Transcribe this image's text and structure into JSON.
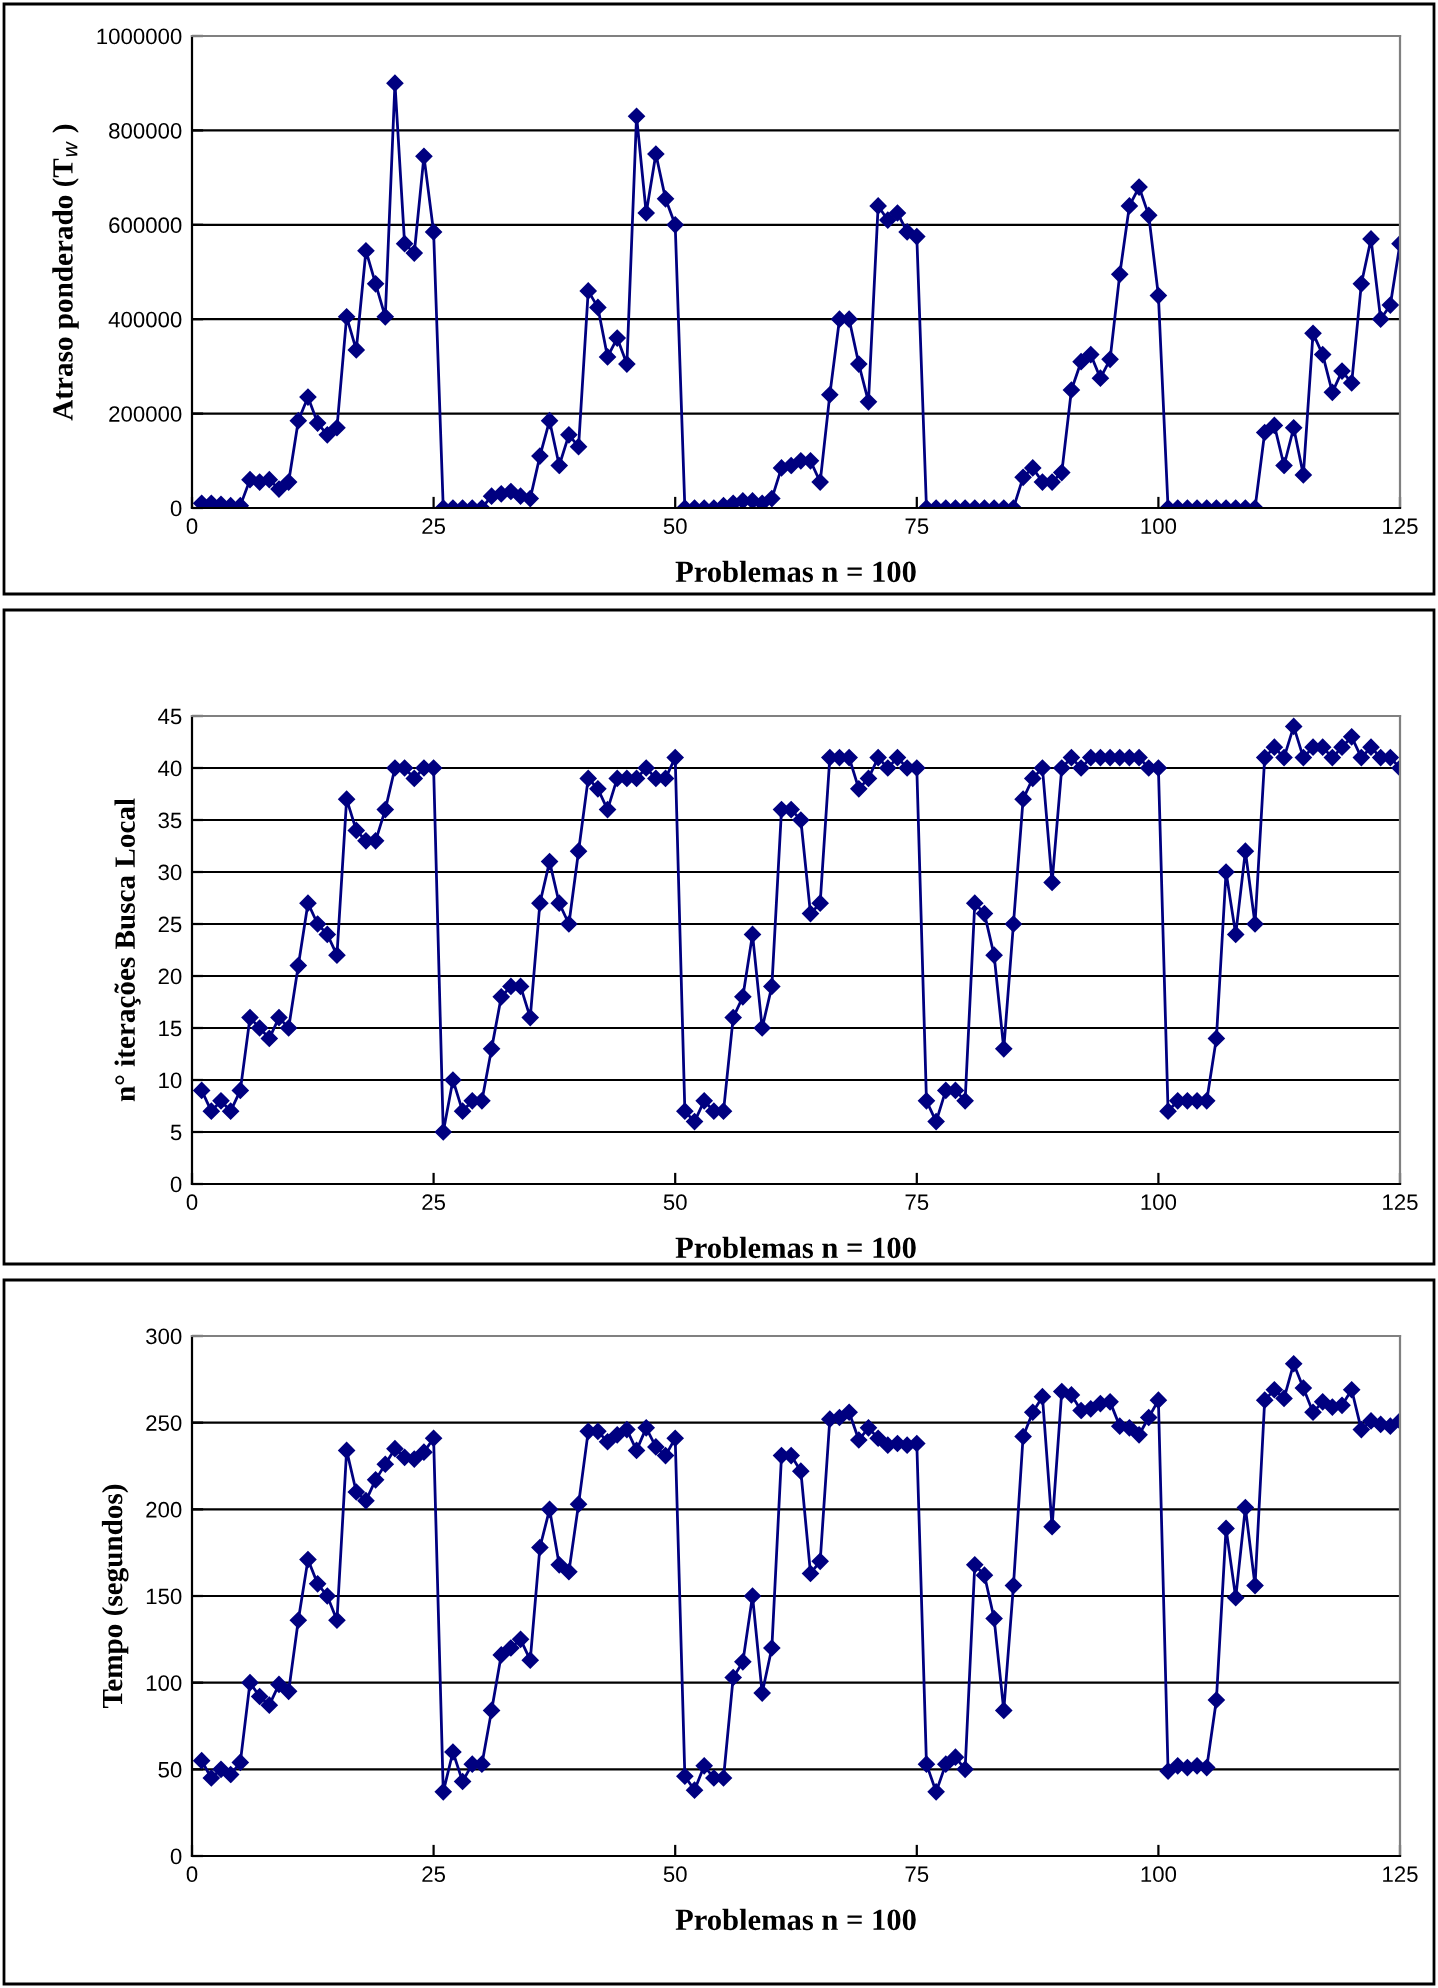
{
  "chart_data": [
    {
      "type": "line",
      "xlabel": "Problemas n = 100",
      "ylabel": "Atraso ponderado (T$_{w}$ )",
      "xlim": [
        0,
        125
      ],
      "xticks": [
        0,
        25,
        50,
        75,
        100,
        125
      ],
      "ylim": [
        0,
        1000000
      ],
      "yticks": [
        0,
        200000,
        400000,
        600000,
        800000,
        1000000
      ],
      "grid": "y",
      "marker": "diamond",
      "line_style": "solid",
      "legend": false,
      "x": [
        1,
        2,
        3,
        4,
        5,
        6,
        7,
        8,
        9,
        10,
        11,
        12,
        13,
        14,
        15,
        16,
        17,
        18,
        19,
        20,
        21,
        22,
        23,
        24,
        25,
        26,
        27,
        28,
        29,
        30,
        31,
        32,
        33,
        34,
        35,
        36,
        37,
        38,
        39,
        40,
        41,
        42,
        43,
        44,
        45,
        46,
        47,
        48,
        49,
        50,
        51,
        52,
        53,
        54,
        55,
        56,
        57,
        58,
        59,
        60,
        61,
        62,
        63,
        64,
        65,
        66,
        67,
        68,
        69,
        70,
        71,
        72,
        73,
        74,
        75,
        76,
        77,
        78,
        79,
        80,
        81,
        82,
        83,
        84,
        85,
        86,
        87,
        88,
        89,
        90,
        91,
        92,
        93,
        94,
        95,
        96,
        97,
        98,
        99,
        100,
        101,
        102,
        103,
        104,
        105,
        106,
        107,
        108,
        109,
        110,
        111,
        112,
        113,
        114,
        115,
        116,
        117,
        118,
        119,
        120,
        121,
        122,
        123,
        124,
        125
      ],
      "series": [
        {
          "color": "#000080",
          "values": [
            10000,
            10000,
            8000,
            5000,
            5000,
            60000,
            55000,
            60000,
            40000,
            55000,
            185000,
            235000,
            180000,
            155000,
            170000,
            405000,
            335000,
            545000,
            475000,
            405000,
            900000,
            560000,
            540000,
            745000,
            585000,
            0,
            0,
            0,
            0,
            0,
            25000,
            30000,
            35000,
            25000,
            20000,
            110000,
            185000,
            90000,
            155000,
            130000,
            460000,
            425000,
            320000,
            360000,
            305000,
            830000,
            625000,
            750000,
            655000,
            600000,
            0,
            0,
            0,
            0,
            5000,
            10000,
            15000,
            15000,
            10000,
            20000,
            85000,
            90000,
            100000,
            100000,
            55000,
            240000,
            400000,
            400000,
            305000,
            225000,
            640000,
            610000,
            625000,
            585000,
            575000,
            0,
            0,
            0,
            0,
            0,
            0,
            0,
            0,
            0,
            0,
            65000,
            85000,
            55000,
            55000,
            75000,
            250000,
            310000,
            325000,
            275000,
            315000,
            495000,
            640000,
            680000,
            620000,
            450000,
            0,
            0,
            0,
            0,
            0,
            0,
            0,
            0,
            0,
            0,
            160000,
            175000,
            90000,
            170000,
            70000,
            370000,
            325000,
            245000,
            290000,
            265000,
            475000,
            570000,
            400000,
            430000,
            560000
          ]
        }
      ]
    },
    {
      "type": "line",
      "xlabel": "Problemas n = 100",
      "ylabel": "n° iterações Busca Local",
      "xlim": [
        0,
        125
      ],
      "xticks": [
        0,
        25,
        50,
        75,
        100,
        125
      ],
      "ylim": [
        0,
        45
      ],
      "yticks": [
        0,
        5,
        10,
        15,
        20,
        25,
        30,
        35,
        40,
        45
      ],
      "grid": "y",
      "marker": "diamond",
      "line_style": "solid",
      "legend": false,
      "x": [
        1,
        2,
        3,
        4,
        5,
        6,
        7,
        8,
        9,
        10,
        11,
        12,
        13,
        14,
        15,
        16,
        17,
        18,
        19,
        20,
        21,
        22,
        23,
        24,
        25,
        26,
        27,
        28,
        29,
        30,
        31,
        32,
        33,
        34,
        35,
        36,
        37,
        38,
        39,
        40,
        41,
        42,
        43,
        44,
        45,
        46,
        47,
        48,
        49,
        50,
        51,
        52,
        53,
        54,
        55,
        56,
        57,
        58,
        59,
        60,
        61,
        62,
        63,
        64,
        65,
        66,
        67,
        68,
        69,
        70,
        71,
        72,
        73,
        74,
        75,
        76,
        77,
        78,
        79,
        80,
        81,
        82,
        83,
        84,
        85,
        86,
        87,
        88,
        89,
        90,
        91,
        92,
        93,
        94,
        95,
        96,
        97,
        98,
        99,
        100,
        101,
        102,
        103,
        104,
        105,
        106,
        107,
        108,
        109,
        110,
        111,
        112,
        113,
        114,
        115,
        116,
        117,
        118,
        119,
        120,
        121,
        122,
        123,
        124,
        125
      ],
      "series": [
        {
          "color": "#000080",
          "values": [
            9,
            7,
            8,
            7,
            9,
            16,
            15,
            14,
            16,
            15,
            21,
            27,
            25,
            24,
            22,
            37,
            34,
            33,
            33,
            36,
            40,
            40,
            39,
            40,
            40,
            5,
            10,
            7,
            8,
            8,
            13,
            18,
            19,
            19,
            16,
            27,
            31,
            27,
            25,
            32,
            39,
            38,
            36,
            39,
            39,
            39,
            40,
            39,
            39,
            41,
            7,
            6,
            8,
            7,
            7,
            16,
            18,
            24,
            15,
            19,
            36,
            36,
            35,
            26,
            27,
            41,
            41,
            41,
            38,
            39,
            41,
            40,
            41,
            40,
            40,
            8,
            6,
            9,
            9,
            8,
            27,
            26,
            22,
            13,
            25,
            37,
            39,
            40,
            29,
            40,
            41,
            40,
            41,
            41,
            41,
            41,
            41,
            41,
            40,
            40,
            7,
            8,
            8,
            8,
            8,
            14,
            30,
            24,
            32,
            25,
            41,
            42,
            41,
            44,
            41,
            42,
            42,
            41,
            42,
            43,
            41,
            42,
            41,
            41,
            40
          ]
        }
      ]
    },
    {
      "type": "line",
      "xlabel": "Problemas n = 100",
      "ylabel": "Tempo (segundos)",
      "xlim": [
        0,
        125
      ],
      "xticks": [
        0,
        25,
        50,
        75,
        100,
        125
      ],
      "ylim": [
        0,
        300
      ],
      "yticks": [
        0,
        50,
        100,
        150,
        200,
        250,
        300
      ],
      "grid": "y",
      "marker": "diamond",
      "line_style": "solid",
      "legend": false,
      "x": [
        1,
        2,
        3,
        4,
        5,
        6,
        7,
        8,
        9,
        10,
        11,
        12,
        13,
        14,
        15,
        16,
        17,
        18,
        19,
        20,
        21,
        22,
        23,
        24,
        25,
        26,
        27,
        28,
        29,
        30,
        31,
        32,
        33,
        34,
        35,
        36,
        37,
        38,
        39,
        40,
        41,
        42,
        43,
        44,
        45,
        46,
        47,
        48,
        49,
        50,
        51,
        52,
        53,
        54,
        55,
        56,
        57,
        58,
        59,
        60,
        61,
        62,
        63,
        64,
        65,
        66,
        67,
        68,
        69,
        70,
        71,
        72,
        73,
        74,
        75,
        76,
        77,
        78,
        79,
        80,
        81,
        82,
        83,
        84,
        85,
        86,
        87,
        88,
        89,
        90,
        91,
        92,
        93,
        94,
        95,
        96,
        97,
        98,
        99,
        100,
        101,
        102,
        103,
        104,
        105,
        106,
        107,
        108,
        109,
        110,
        111,
        112,
        113,
        114,
        115,
        116,
        117,
        118,
        119,
        120,
        121,
        122,
        123,
        124,
        125
      ],
      "series": [
        {
          "color": "#000080",
          "values": [
            55,
            45,
            50,
            47,
            54,
            100,
            92,
            87,
            99,
            95,
            136,
            171,
            157,
            150,
            136,
            234,
            210,
            205,
            217,
            226,
            235,
            230,
            229,
            233,
            241,
            37,
            60,
            43,
            53,
            53,
            84,
            116,
            120,
            125,
            113,
            178,
            200,
            168,
            164,
            203,
            245,
            245,
            239,
            243,
            246,
            234,
            247,
            236,
            231,
            241,
            46,
            38,
            52,
            45,
            45,
            103,
            112,
            150,
            94,
            120,
            231,
            231,
            222,
            163,
            170,
            252,
            253,
            256,
            240,
            247,
            241,
            237,
            238,
            237,
            238,
            53,
            37,
            53,
            57,
            50,
            168,
            162,
            137,
            84,
            156,
            242,
            256,
            265,
            190,
            268,
            266,
            257,
            258,
            261,
            262,
            248,
            247,
            243,
            253,
            263,
            49,
            52,
            51,
            52,
            51,
            90,
            189,
            149,
            201,
            156,
            263,
            269,
            264,
            284,
            270,
            256,
            262,
            259,
            260,
            269,
            246,
            251,
            249,
            248,
            251
          ]
        }
      ]
    }
  ]
}
